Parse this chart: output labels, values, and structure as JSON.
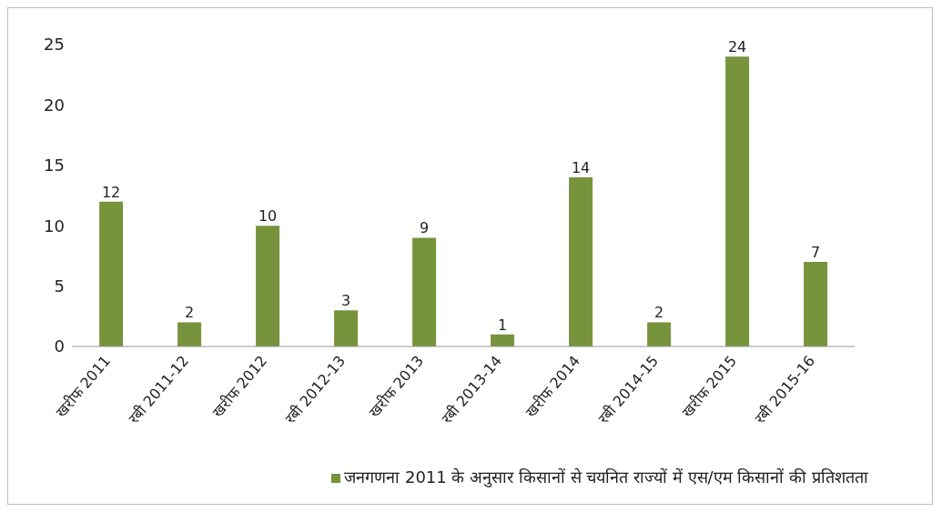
{
  "chart_data": {
    "type": "bar",
    "categories": [
      "खरीफ 2011",
      "रबी 2011-12",
      "खरीफ 2012",
      "रबी 2012-13",
      "खरीफ 2013",
      "रबी 2013-14",
      "खरीफ 2014",
      "रबी 2014-15",
      "खरीफ 2015",
      "रबी 2015-16"
    ],
    "series": [
      {
        "name": "जनगणना 2011 के अनुसार किसानों से चयनित राज्यों में एस/एम किसानों की प्रतिशतता",
        "color": "#77933c",
        "values": [
          12,
          2,
          10,
          3,
          9,
          1,
          14,
          2,
          24,
          7
        ]
      }
    ],
    "ylim": [
      0,
      25
    ],
    "yticks": [
      0,
      5,
      10,
      15,
      20,
      25
    ],
    "grid": false,
    "data_labels": true,
    "legend": "bottom"
  }
}
